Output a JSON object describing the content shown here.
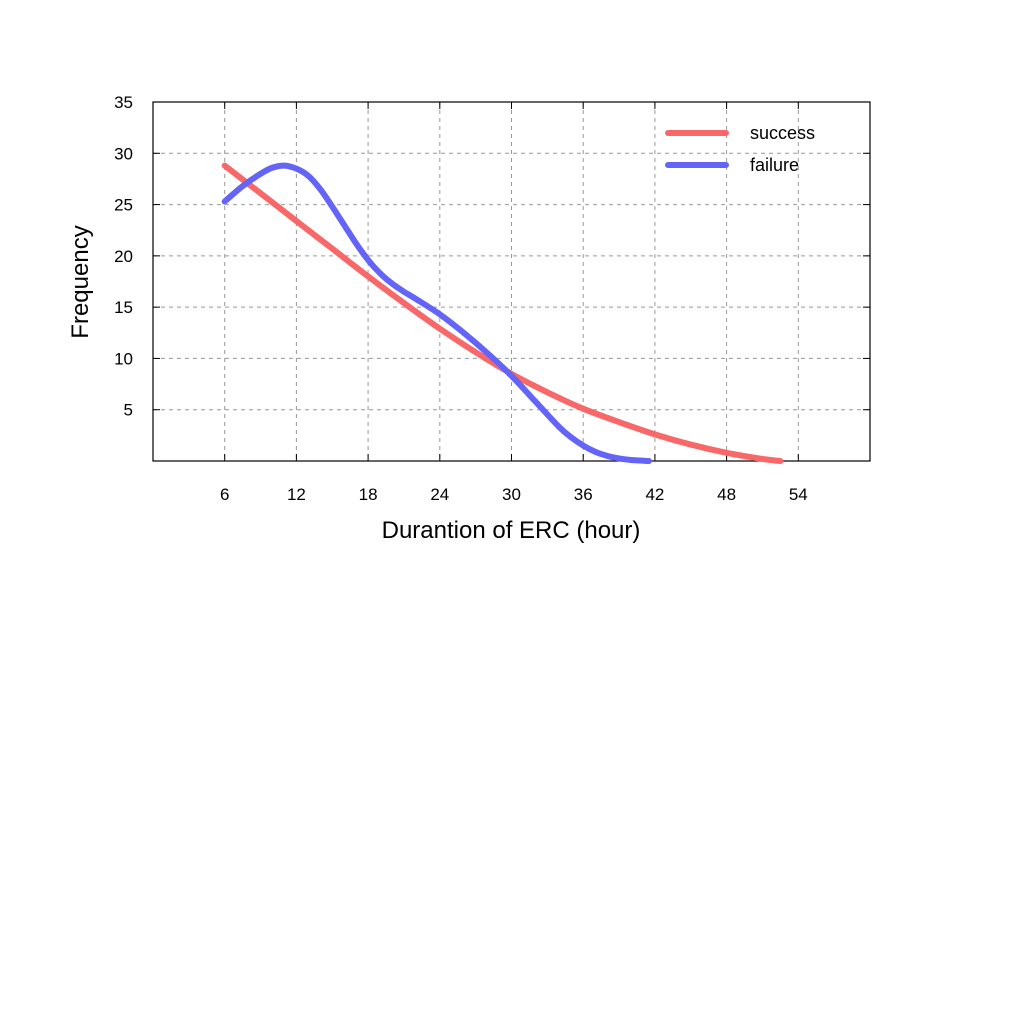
{
  "chart_data": {
    "type": "line",
    "title": "",
    "xlabel": "Durantion of ERC (hour)",
    "ylabel": "Frequency",
    "xlim": [
      0,
      60
    ],
    "ylim": [
      0,
      35
    ],
    "x_ticks": [
      6,
      12,
      18,
      24,
      30,
      36,
      42,
      48,
      54
    ],
    "y_ticks": [
      5,
      10,
      15,
      20,
      25,
      30,
      35
    ],
    "grid": true,
    "legend_position": "top-right",
    "series": [
      {
        "name": "success",
        "color": "#f86868",
        "x": [
          6,
          9,
          12,
          15,
          18,
          21,
          24,
          27,
          30,
          33,
          36,
          39,
          42,
          45,
          48,
          51,
          52.5
        ],
        "y": [
          28.8,
          26.1,
          23.4,
          20.7,
          18.0,
          15.4,
          12.9,
          10.6,
          8.5,
          6.7,
          5.1,
          3.8,
          2.6,
          1.6,
          0.8,
          0.2,
          0.0
        ]
      },
      {
        "name": "failure",
        "color": "#6464f8",
        "x": [
          6,
          7.5,
          9,
          10,
          11,
          12,
          13,
          14,
          15,
          16,
          17,
          18,
          19,
          20,
          21,
          22,
          24,
          26,
          28,
          30,
          32,
          34,
          35,
          36,
          37,
          38,
          39,
          40,
          41.5
        ],
        "y": [
          25.3,
          26.8,
          28.0,
          28.6,
          28.8,
          28.5,
          27.8,
          26.5,
          24.8,
          23.0,
          21.2,
          19.6,
          18.3,
          17.3,
          16.5,
          15.8,
          14.3,
          12.5,
          10.5,
          8.3,
          5.8,
          3.3,
          2.3,
          1.5,
          0.9,
          0.5,
          0.25,
          0.1,
          0.0
        ]
      }
    ]
  }
}
